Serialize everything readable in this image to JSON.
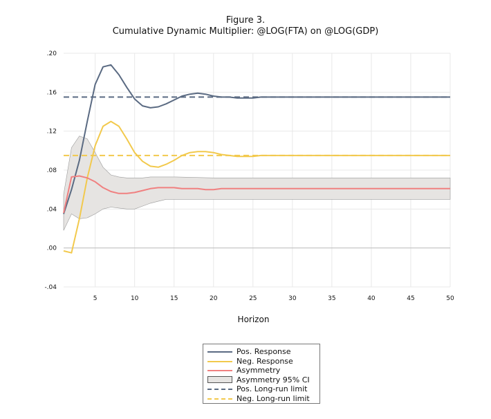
{
  "title": "Figure 3.",
  "subtitle": "Cumulative Dynamic Multiplier: @LOG(FTA) on @LOG(GDP)",
  "chart_data": {
    "type": "line",
    "title": "Figure 3.",
    "subtitle": "Cumulative Dynamic Multiplier: @LOG(FTA) on @LOG(GDP)",
    "xlabel": "Horizon",
    "ylabel": "",
    "xlim": [
      1,
      50
    ],
    "ylim": [
      -0.04,
      0.2
    ],
    "x_ticks": [
      5,
      10,
      15,
      20,
      25,
      30,
      35,
      40,
      45,
      50
    ],
    "y_ticks": [
      -0.04,
      0.0,
      0.04,
      0.08,
      0.12,
      0.16,
      0.2
    ],
    "y_tick_labels": [
      "-.04",
      ".00",
      ".04",
      ".08",
      ".12",
      ".16",
      ".20"
    ],
    "grid": true,
    "legend_position": "bottom",
    "series": [
      {
        "name": "Pos. Response",
        "color": "#5a6a82",
        "style": "solid",
        "x": [
          1,
          2,
          3,
          4,
          5,
          6,
          7,
          8,
          9,
          10,
          11,
          12,
          13,
          14,
          15,
          16,
          17,
          18,
          19,
          20,
          21,
          22,
          23,
          24,
          25,
          26,
          27,
          30,
          35,
          40,
          45,
          50
        ],
        "y": [
          0.035,
          0.06,
          0.09,
          0.13,
          0.168,
          0.186,
          0.188,
          0.178,
          0.165,
          0.153,
          0.146,
          0.144,
          0.145,
          0.148,
          0.152,
          0.156,
          0.158,
          0.159,
          0.158,
          0.156,
          0.155,
          0.155,
          0.154,
          0.154,
          0.154,
          0.155,
          0.155,
          0.155,
          0.155,
          0.155,
          0.155,
          0.155
        ]
      },
      {
        "name": "Neg. Response",
        "color": "#f2c94c",
        "style": "solid",
        "x": [
          1,
          2,
          3,
          4,
          5,
          6,
          7,
          8,
          9,
          10,
          11,
          12,
          13,
          14,
          15,
          16,
          17,
          18,
          19,
          20,
          21,
          22,
          23,
          24,
          25,
          26,
          27,
          30,
          35,
          40,
          45,
          50
        ],
        "y": [
          -0.003,
          -0.005,
          0.03,
          0.072,
          0.105,
          0.125,
          0.13,
          0.125,
          0.112,
          0.098,
          0.089,
          0.084,
          0.083,
          0.086,
          0.09,
          0.095,
          0.098,
          0.099,
          0.099,
          0.098,
          0.096,
          0.095,
          0.094,
          0.094,
          0.094,
          0.095,
          0.095,
          0.095,
          0.095,
          0.095,
          0.095,
          0.095
        ]
      },
      {
        "name": "Asymmetry",
        "color": "#f08080",
        "style": "solid",
        "x": [
          1,
          2,
          3,
          4,
          5,
          6,
          7,
          8,
          9,
          10,
          11,
          12,
          13,
          14,
          15,
          16,
          17,
          18,
          19,
          20,
          21,
          25,
          30,
          35,
          40,
          45,
          50
        ],
        "y": [
          0.036,
          0.073,
          0.074,
          0.072,
          0.068,
          0.062,
          0.058,
          0.056,
          0.056,
          0.057,
          0.059,
          0.061,
          0.062,
          0.062,
          0.062,
          0.061,
          0.061,
          0.061,
          0.06,
          0.06,
          0.061,
          0.061,
          0.061,
          0.061,
          0.061,
          0.061,
          0.061
        ]
      },
      {
        "name": "Pos. Long-run limit",
        "color": "#5a6a82",
        "style": "dashed",
        "value": 0.155
      },
      {
        "name": "Neg. Long-run limit",
        "color": "#f2c94c",
        "style": "dashed",
        "value": 0.095
      }
    ],
    "band": {
      "name": "Asymmetry 95% CI",
      "fill": "#e6e4e2",
      "x": [
        1,
        2,
        3,
        4,
        5,
        6,
        7,
        8,
        9,
        10,
        11,
        12,
        13,
        14,
        15,
        20,
        25,
        30,
        35,
        40,
        45,
        50
      ],
      "upper": [
        0.055,
        0.103,
        0.115,
        0.112,
        0.098,
        0.083,
        0.075,
        0.073,
        0.072,
        0.072,
        0.072,
        0.073,
        0.073,
        0.073,
        0.073,
        0.072,
        0.072,
        0.072,
        0.072,
        0.072,
        0.072,
        0.072
      ],
      "lower": [
        0.018,
        0.035,
        0.03,
        0.031,
        0.035,
        0.04,
        0.042,
        0.041,
        0.04,
        0.04,
        0.043,
        0.046,
        0.048,
        0.05,
        0.05,
        0.05,
        0.05,
        0.05,
        0.05,
        0.05,
        0.05,
        0.05
      ]
    }
  }
}
